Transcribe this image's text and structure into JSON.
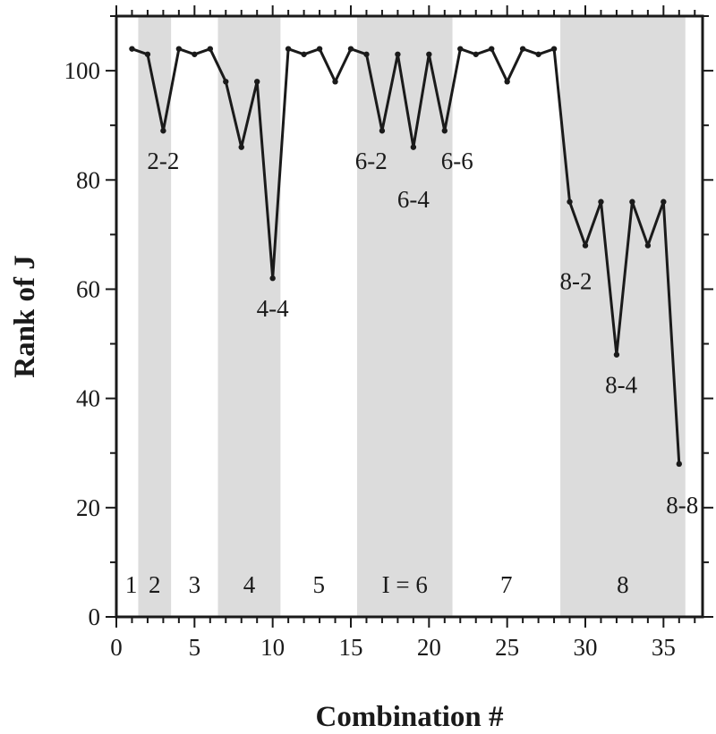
{
  "chart_data": {
    "type": "line",
    "xlabel": "Combination #",
    "ylabel": "Rank of J",
    "xlim": [
      0,
      37.5
    ],
    "ylim": [
      0,
      110
    ],
    "xticks": [
      0,
      5,
      10,
      15,
      20,
      25,
      30,
      35
    ],
    "yticks": [
      0,
      20,
      40,
      60,
      80,
      100
    ],
    "grid": false,
    "series": [
      {
        "x": [
          1,
          2,
          3,
          4,
          5,
          6,
          7,
          8,
          9,
          10,
          11,
          12,
          13,
          14,
          15,
          16,
          17,
          18,
          19,
          20,
          21,
          22,
          23,
          24,
          25,
          26,
          27,
          28,
          29,
          30,
          31,
          32,
          33,
          34,
          35,
          36
        ],
        "values": [
          104,
          103,
          89,
          104,
          103,
          104,
          98,
          86,
          98,
          62,
          104,
          103,
          104,
          98,
          104,
          103,
          89,
          103,
          86,
          103,
          89,
          104,
          103,
          104,
          98,
          104,
          103,
          104,
          76,
          68,
          76,
          48,
          76,
          68,
          76,
          28
        ]
      }
    ],
    "bands": [
      {
        "label": "1",
        "x0": 0.5,
        "x1": 1.4,
        "shaded": false
      },
      {
        "label": "2",
        "x0": 1.4,
        "x1": 3.5,
        "shaded": true
      },
      {
        "label": "3",
        "x0": 3.5,
        "x1": 6.5,
        "shaded": false
      },
      {
        "label": "4",
        "x0": 6.5,
        "x1": 10.5,
        "shaded": true
      },
      {
        "label": "5",
        "x0": 10.5,
        "x1": 15.4,
        "shaded": false
      },
      {
        "label": "I = 6",
        "x0": 15.4,
        "x1": 21.5,
        "shaded": true
      },
      {
        "label": "7",
        "x0": 21.5,
        "x1": 28.4,
        "shaded": false
      },
      {
        "label": "8",
        "x0": 28.4,
        "x1": 36.4,
        "shaded": true
      }
    ],
    "annotations": [
      {
        "text": "2-2",
        "x": 3,
        "y": 82
      },
      {
        "text": "4-4",
        "x": 10,
        "y": 55
      },
      {
        "text": "6-2",
        "x": 16.3,
        "y": 82
      },
      {
        "text": "6-4",
        "x": 19,
        "y": 75
      },
      {
        "text": "6-6",
        "x": 21.8,
        "y": 82
      },
      {
        "text": "8-2",
        "x": 29.4,
        "y": 60
      },
      {
        "text": "8-4",
        "x": 32.3,
        "y": 41
      },
      {
        "text": "8-8",
        "x": 36.2,
        "y": 19
      }
    ],
    "colors": {
      "band": "#dcdcdc",
      "line": "#1a1a1a",
      "axis": "#1a1a1a"
    }
  }
}
